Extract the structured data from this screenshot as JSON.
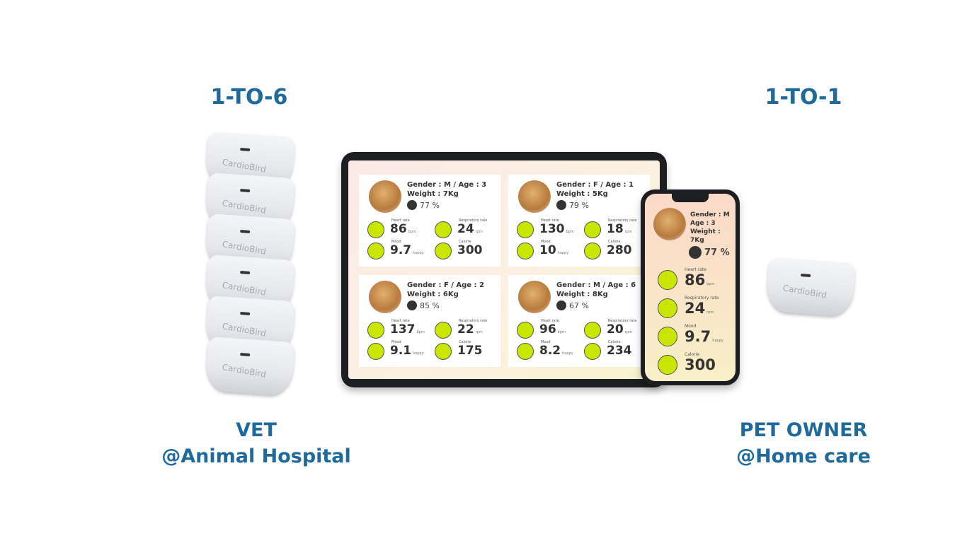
{
  "left": {
    "title": "1-TO-6",
    "caption1": "VET",
    "caption2": "@Animal Hospital",
    "device_count": 6
  },
  "right": {
    "title": "1-TO-1",
    "caption1": "PET OWNER",
    "caption2": "@Home care"
  },
  "device_brand": "CardioBird",
  "accent": "#1f6a9c",
  "icon_color": "#c8e600",
  "labels": {
    "heart": "Heart rate",
    "resp": "Respiratory rate",
    "mood": "Mood",
    "cal": "Calorie",
    "bpm": "bpm",
    "rpm": "rpm",
    "happy": "happy"
  },
  "tablet_cards": [
    {
      "line1": "Gender : M  / Age : 3",
      "line2": "Weight : 7Kg",
      "percent": "77 %",
      "heart": "86",
      "resp": "24",
      "mood": "9.7",
      "cal": "300"
    },
    {
      "line1": "Gender : F  / Age : 1",
      "line2": "Weight : 5Kg",
      "percent": "79 %",
      "heart": "130",
      "resp": "18",
      "mood": "10",
      "cal": "280"
    },
    {
      "line1": "Gender : F / Age : 2",
      "line2": "Weight : 6Kg",
      "percent": "85 %",
      "heart": "137",
      "resp": "22",
      "mood": "9.1",
      "cal": "175"
    },
    {
      "line1": "Gender : M / Age : 6",
      "line2": "Weight : 8Kg",
      "percent": "67 %",
      "heart": "96",
      "resp": "20",
      "mood": "8.2",
      "cal": "234"
    }
  ],
  "phone": {
    "gender": "Gender : M",
    "age": "Age : 3",
    "weight": "Weight : 7Kg",
    "percent": "77 %",
    "heart": "86",
    "resp": "24",
    "mood": "9.7",
    "cal": "300"
  }
}
